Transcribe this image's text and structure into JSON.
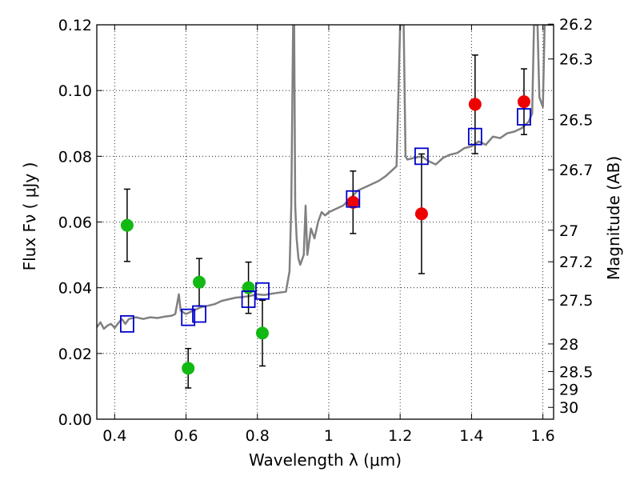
{
  "chart_data": {
    "type": "scatter",
    "xlabel": "Wavelength  λ (μm)",
    "ylabel": "Flux  Fν  ( μJy )",
    "y2label": "Magnitude (AB)",
    "xlim": [
      0.35,
      1.63
    ],
    "ylim": [
      0.0,
      0.12
    ],
    "grid": true,
    "x_ticks": [
      0.4,
      0.6,
      0.8,
      1.0,
      1.2,
      1.4,
      1.6
    ],
    "x_tick_labels": [
      "0.4",
      "0.6",
      "0.8",
      "1",
      "1.2",
      "1.4",
      "1.6"
    ],
    "y_ticks": [
      0.0,
      0.02,
      0.04,
      0.06,
      0.08,
      0.1,
      0.12
    ],
    "y_tick_labels": [
      "0.00",
      "0.02",
      "0.04",
      "0.06",
      "0.08",
      "0.10",
      "0.12"
    ],
    "y2_ticks": [
      {
        "label": "26.2",
        "flux": 0.1202
      },
      {
        "label": "26.3",
        "flux": 0.1096
      },
      {
        "label": "26.5",
        "flux": 0.0912
      },
      {
        "label": "26.7",
        "flux": 0.0759
      },
      {
        "label": "27",
        "flux": 0.0575
      },
      {
        "label": "27.2",
        "flux": 0.0479
      },
      {
        "label": "27.5",
        "flux": 0.0363
      },
      {
        "label": "28",
        "flux": 0.0229
      },
      {
        "label": "28.5",
        "flux": 0.0145
      },
      {
        "label": "29",
        "flux": 0.0091
      },
      {
        "label": "30",
        "flux": 0.0036
      }
    ],
    "colors": {
      "green": "#13b913",
      "red": "#ee0000",
      "square": "#0000cc",
      "model": "#808080",
      "errorbar": "#000000"
    },
    "series": [
      {
        "marker": "circle-green",
        "points": [
          {
            "x": 0.435,
            "y": 0.059,
            "err": 0.011
          },
          {
            "x": 0.606,
            "y": 0.0155,
            "err": 0.006
          },
          {
            "x": 0.637,
            "y": 0.0417,
            "err": 0.0072
          },
          {
            "x": 0.775,
            "y": 0.04,
            "err": 0.0078
          },
          {
            "x": 0.814,
            "y": 0.0262,
            "err": 0.01
          }
        ]
      },
      {
        "marker": "circle-red",
        "points": [
          {
            "x": 1.068,
            "y": 0.066,
            "err": 0.0095
          },
          {
            "x": 1.26,
            "y": 0.0625,
            "err": 0.0182
          },
          {
            "x": 1.41,
            "y": 0.0958,
            "err": 0.015
          },
          {
            "x": 1.547,
            "y": 0.0966,
            "err": 0.01
          }
        ]
      },
      {
        "marker": "square-blue",
        "points": [
          {
            "x": 0.435,
            "y": 0.029
          },
          {
            "x": 0.606,
            "y": 0.031
          },
          {
            "x": 0.637,
            "y": 0.032
          },
          {
            "x": 0.775,
            "y": 0.0365
          },
          {
            "x": 0.814,
            "y": 0.039
          },
          {
            "x": 1.068,
            "y": 0.067
          },
          {
            "x": 1.26,
            "y": 0.08
          },
          {
            "x": 1.41,
            "y": 0.086
          },
          {
            "x": 1.547,
            "y": 0.092
          }
        ]
      }
    ],
    "model_spectrum": [
      [
        0.35,
        0.028
      ],
      [
        0.36,
        0.0295
      ],
      [
        0.37,
        0.0275
      ],
      [
        0.38,
        0.0285
      ],
      [
        0.39,
        0.029
      ],
      [
        0.4,
        0.0278
      ],
      [
        0.41,
        0.0292
      ],
      [
        0.42,
        0.0305
      ],
      [
        0.43,
        0.029
      ],
      [
        0.44,
        0.0305
      ],
      [
        0.46,
        0.031
      ],
      [
        0.48,
        0.0305
      ],
      [
        0.5,
        0.031
      ],
      [
        0.52,
        0.0308
      ],
      [
        0.54,
        0.0312
      ],
      [
        0.56,
        0.0315
      ],
      [
        0.57,
        0.032
      ],
      [
        0.58,
        0.038
      ],
      [
        0.585,
        0.033
      ],
      [
        0.6,
        0.032
      ],
      [
        0.62,
        0.033
      ],
      [
        0.64,
        0.034
      ],
      [
        0.66,
        0.0345
      ],
      [
        0.68,
        0.035
      ],
      [
        0.7,
        0.036
      ],
      [
        0.72,
        0.0365
      ],
      [
        0.74,
        0.037
      ],
      [
        0.76,
        0.0372
      ],
      [
        0.78,
        0.0375
      ],
      [
        0.8,
        0.038
      ],
      [
        0.82,
        0.0378
      ],
      [
        0.84,
        0.0382
      ],
      [
        0.86,
        0.0385
      ],
      [
        0.88,
        0.0388
      ],
      [
        0.89,
        0.045
      ],
      [
        0.895,
        0.065
      ],
      [
        0.9,
        0.12
      ],
      [
        0.903,
        0.12
      ],
      [
        0.906,
        0.065
      ],
      [
        0.91,
        0.055
      ],
      [
        0.915,
        0.049
      ],
      [
        0.92,
        0.047
      ],
      [
        0.93,
        0.05
      ],
      [
        0.935,
        0.065
      ],
      [
        0.94,
        0.05
      ],
      [
        0.95,
        0.058
      ],
      [
        0.96,
        0.055
      ],
      [
        0.97,
        0.06
      ],
      [
        0.98,
        0.063
      ],
      [
        0.99,
        0.062
      ],
      [
        1.0,
        0.063
      ],
      [
        1.02,
        0.064
      ],
      [
        1.04,
        0.065
      ],
      [
        1.06,
        0.067
      ],
      [
        1.08,
        0.0695
      ],
      [
        1.1,
        0.0705
      ],
      [
        1.12,
        0.0715
      ],
      [
        1.14,
        0.0725
      ],
      [
        1.16,
        0.074
      ],
      [
        1.18,
        0.076
      ],
      [
        1.19,
        0.077
      ],
      [
        1.2,
        0.12
      ],
      [
        1.21,
        0.12
      ],
      [
        1.215,
        0.08
      ],
      [
        1.22,
        0.079
      ],
      [
        1.24,
        0.0795
      ],
      [
        1.26,
        0.08
      ],
      [
        1.28,
        0.0785
      ],
      [
        1.3,
        0.0775
      ],
      [
        1.32,
        0.0795
      ],
      [
        1.34,
        0.0805
      ],
      [
        1.36,
        0.081
      ],
      [
        1.38,
        0.0825
      ],
      [
        1.4,
        0.083
      ],
      [
        1.42,
        0.0845
      ],
      [
        1.44,
        0.0835
      ],
      [
        1.46,
        0.086
      ],
      [
        1.48,
        0.0855
      ],
      [
        1.5,
        0.087
      ],
      [
        1.52,
        0.0875
      ],
      [
        1.54,
        0.0885
      ],
      [
        1.56,
        0.0905
      ],
      [
        1.57,
        0.093
      ],
      [
        1.575,
        0.12
      ],
      [
        1.585,
        0.12
      ],
      [
        1.59,
        0.098
      ],
      [
        1.6,
        0.095
      ],
      [
        1.605,
        0.12
      ],
      [
        1.63,
        0.12
      ]
    ]
  }
}
